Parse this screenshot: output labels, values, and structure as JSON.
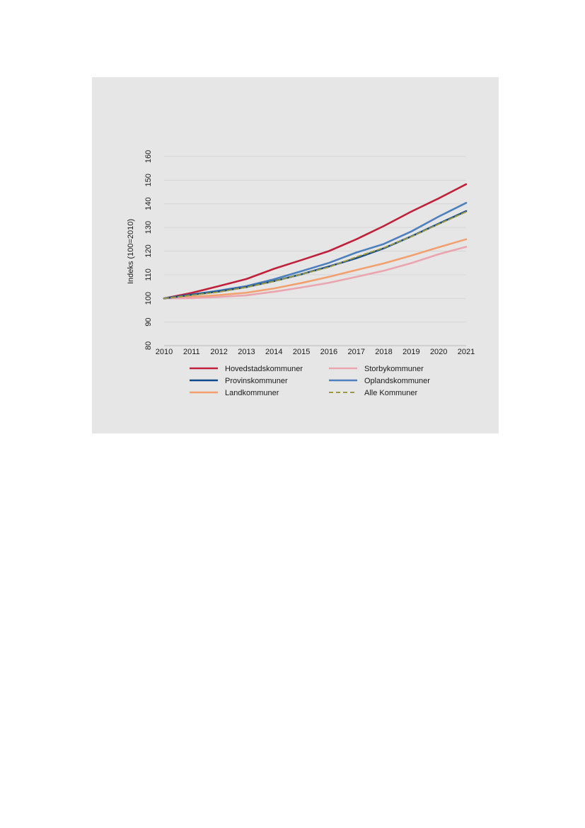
{
  "chart_data": {
    "type": "line",
    "title": "",
    "xlabel": "",
    "ylabel": "Indeks (100=2010)",
    "ylim": [
      80,
      160
    ],
    "yticks": [
      80,
      90,
      100,
      110,
      120,
      130,
      140,
      150,
      160
    ],
    "grid": true,
    "legend_position": "bottom",
    "x": [
      2010,
      2011,
      2012,
      2013,
      2014,
      2015,
      2016,
      2017,
      2018,
      2019,
      2020,
      2021
    ],
    "series": [
      {
        "name": "Hovedstadskommuner",
        "color": "#c0203a",
        "dashed": false,
        "values": [
          100,
          102.3,
          105.2,
          108.2,
          112.5,
          116.2,
          120.0,
          125.0,
          130.6,
          136.7,
          142.3,
          148.3
        ]
      },
      {
        "name": "Storbykommuner",
        "color": "#eba5ae",
        "dashed": false,
        "values": [
          100,
          100.1,
          100.6,
          101.3,
          102.8,
          104.6,
          106.6,
          109.1,
          111.7,
          114.9,
          118.7,
          121.8
        ]
      },
      {
        "name": "Provinskommuner",
        "color": "#114a8b",
        "dashed": false,
        "values": [
          100,
          101.5,
          102.9,
          104.8,
          107.3,
          110.2,
          113.5,
          117.0,
          121.2,
          126.2,
          131.6,
          136.9
        ]
      },
      {
        "name": "Oplandskommuner",
        "color": "#4d80bd",
        "dashed": false,
        "values": [
          100,
          101.6,
          103.3,
          105.2,
          108.1,
          111.5,
          115.0,
          119.4,
          123.0,
          128.3,
          134.6,
          140.4
        ]
      },
      {
        "name": "Landkommuner",
        "color": "#f2a16e",
        "dashed": false,
        "values": [
          100,
          100.6,
          101.4,
          102.4,
          104.2,
          106.5,
          109.1,
          112.0,
          114.8,
          118.1,
          121.6,
          125.0
        ]
      },
      {
        "name": "Alle Kommuner",
        "color": "#9e9a44",
        "dashed": true,
        "values": [
          100,
          101.3,
          102.7,
          104.7,
          107.2,
          110.2,
          113.2,
          117.5,
          121.4,
          126.1,
          131.4,
          136.6
        ]
      }
    ]
  }
}
